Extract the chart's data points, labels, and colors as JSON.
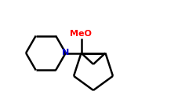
{
  "bg_color": "#ffffff",
  "line_color": "#000000",
  "N_color": "#0000cd",
  "MeO_color": "#ff0000",
  "MeO_label": "MeO",
  "N_label": "N",
  "linewidth": 1.8,
  "figsize": [
    2.27,
    1.35
  ],
  "dpi": 100
}
